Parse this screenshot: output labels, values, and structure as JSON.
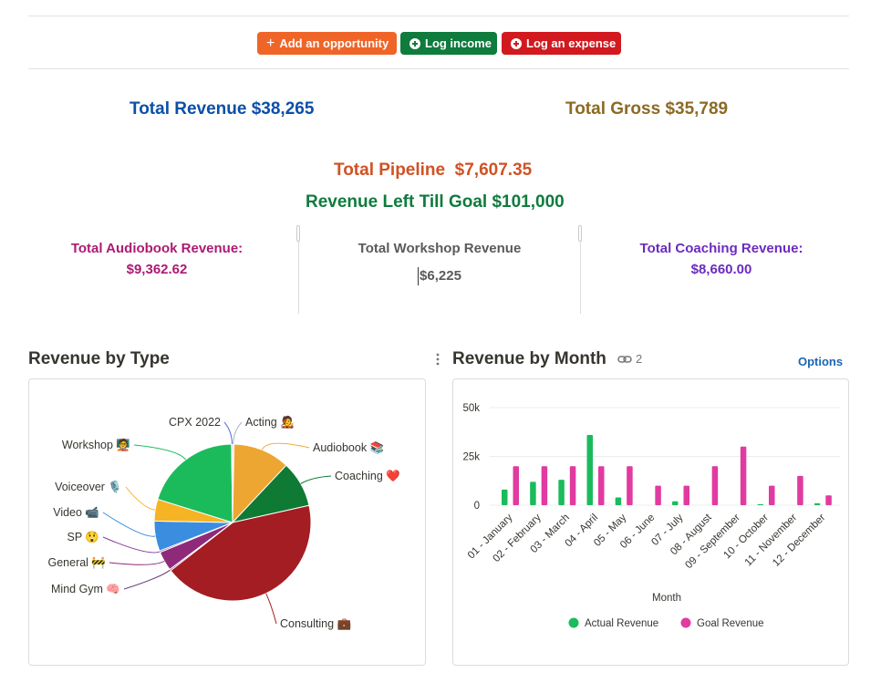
{
  "toolbar": {
    "add_opportunity": "Add an opportunity",
    "log_income": "Log income",
    "log_expense": "Log an expense"
  },
  "colors": {
    "orange_button": "#ef6528",
    "green_button": "#0f7b3d",
    "red_button": "#d1191f",
    "revenue_blue": "#0b4fa8",
    "gross_gold": "#8b6a24",
    "pipeline_orange": "#cf5224",
    "goal_green": "#0f7b3d",
    "audiobook_magenta": "#ad1a72",
    "workshop_gray": "#5a5a5a",
    "coaching_purple": "#6b2bbf",
    "options_blue": "#1a66b3"
  },
  "stats": {
    "total_revenue": "Total Revenue $38,265",
    "total_gross": "Total Gross $35,789",
    "total_pipeline_label": "Total Pipeline",
    "total_pipeline_value": "$7,607.35",
    "revenue_left": "Revenue Left Till Goal $101,000",
    "audiobook_label": "Total Audiobook Revenue:",
    "audiobook_value": "$9,362.62",
    "workshop_label": "Total Workshop Revenue",
    "workshop_value": "$6,225",
    "coaching_label": "Total Coaching Revenue:",
    "coaching_value": "$8,660.00"
  },
  "sections": {
    "revenue_by_type": "Revenue by Type",
    "revenue_by_month": "Revenue by Month",
    "linked_count": "2",
    "options": "Options"
  },
  "chart_data": [
    {
      "type": "pie",
      "title": "Revenue by Type",
      "slices": [
        {
          "label": "Acting",
          "emoji": "🧑‍🎤",
          "value": 0.3,
          "color": "#aab4c8"
        },
        {
          "label": "Audiobook",
          "emoji": "📚",
          "value": 11.7,
          "color": "#eda631"
        },
        {
          "label": "Coaching",
          "emoji": "❤️",
          "value": 9.5,
          "color": "#0e7a34"
        },
        {
          "label": "Consulting",
          "emoji": "💼",
          "value": 43.0,
          "color": "#a31d22"
        },
        {
          "label": "Mind Gym",
          "emoji": "🧠",
          "value": 0.3,
          "color": "#6a3a7a"
        },
        {
          "label": "General",
          "emoji": "🚧",
          "value": 4.0,
          "color": "#8f2a7a"
        },
        {
          "label": "SP",
          "emoji": "😲",
          "value": 0.3,
          "color": "#8a3c9a"
        },
        {
          "label": "Video",
          "emoji": "📹",
          "value": 6.2,
          "color": "#3b8de0"
        },
        {
          "label": "Voiceover",
          "emoji": "🎙️",
          "value": 4.5,
          "color": "#f6b324"
        },
        {
          "label": "Workshop",
          "emoji": "🧑‍🏫",
          "value": 20.0,
          "color": "#1bbb5c"
        },
        {
          "label": "CPX 2022",
          "emoji": "",
          "value": 0.2,
          "color": "#5b6ed8"
        }
      ]
    },
    {
      "type": "bar",
      "title": "Revenue by Month",
      "xlabel": "Month",
      "ylabel": "",
      "ylim": [
        0,
        50000
      ],
      "yticks": [
        "0",
        "25k",
        "50k"
      ],
      "categories": [
        "01 - January",
        "02 - February",
        "03 - March",
        "04 - April",
        "05 - May",
        "06 - June",
        "07 - July",
        "08 - August",
        "09 - September",
        "10 - October",
        "11 - November",
        "12 - December"
      ],
      "series": [
        {
          "name": "Actual Revenue",
          "color": "#1bbb5c",
          "values": [
            8000,
            12000,
            13000,
            36000,
            4000,
            0,
            2000,
            0,
            0,
            500,
            0,
            1000
          ]
        },
        {
          "name": "Goal Revenue",
          "color": "#e13aa0",
          "values": [
            20000,
            20000,
            20000,
            20000,
            20000,
            10000,
            10000,
            20000,
            30000,
            10000,
            15000,
            5000
          ]
        }
      ]
    }
  ]
}
